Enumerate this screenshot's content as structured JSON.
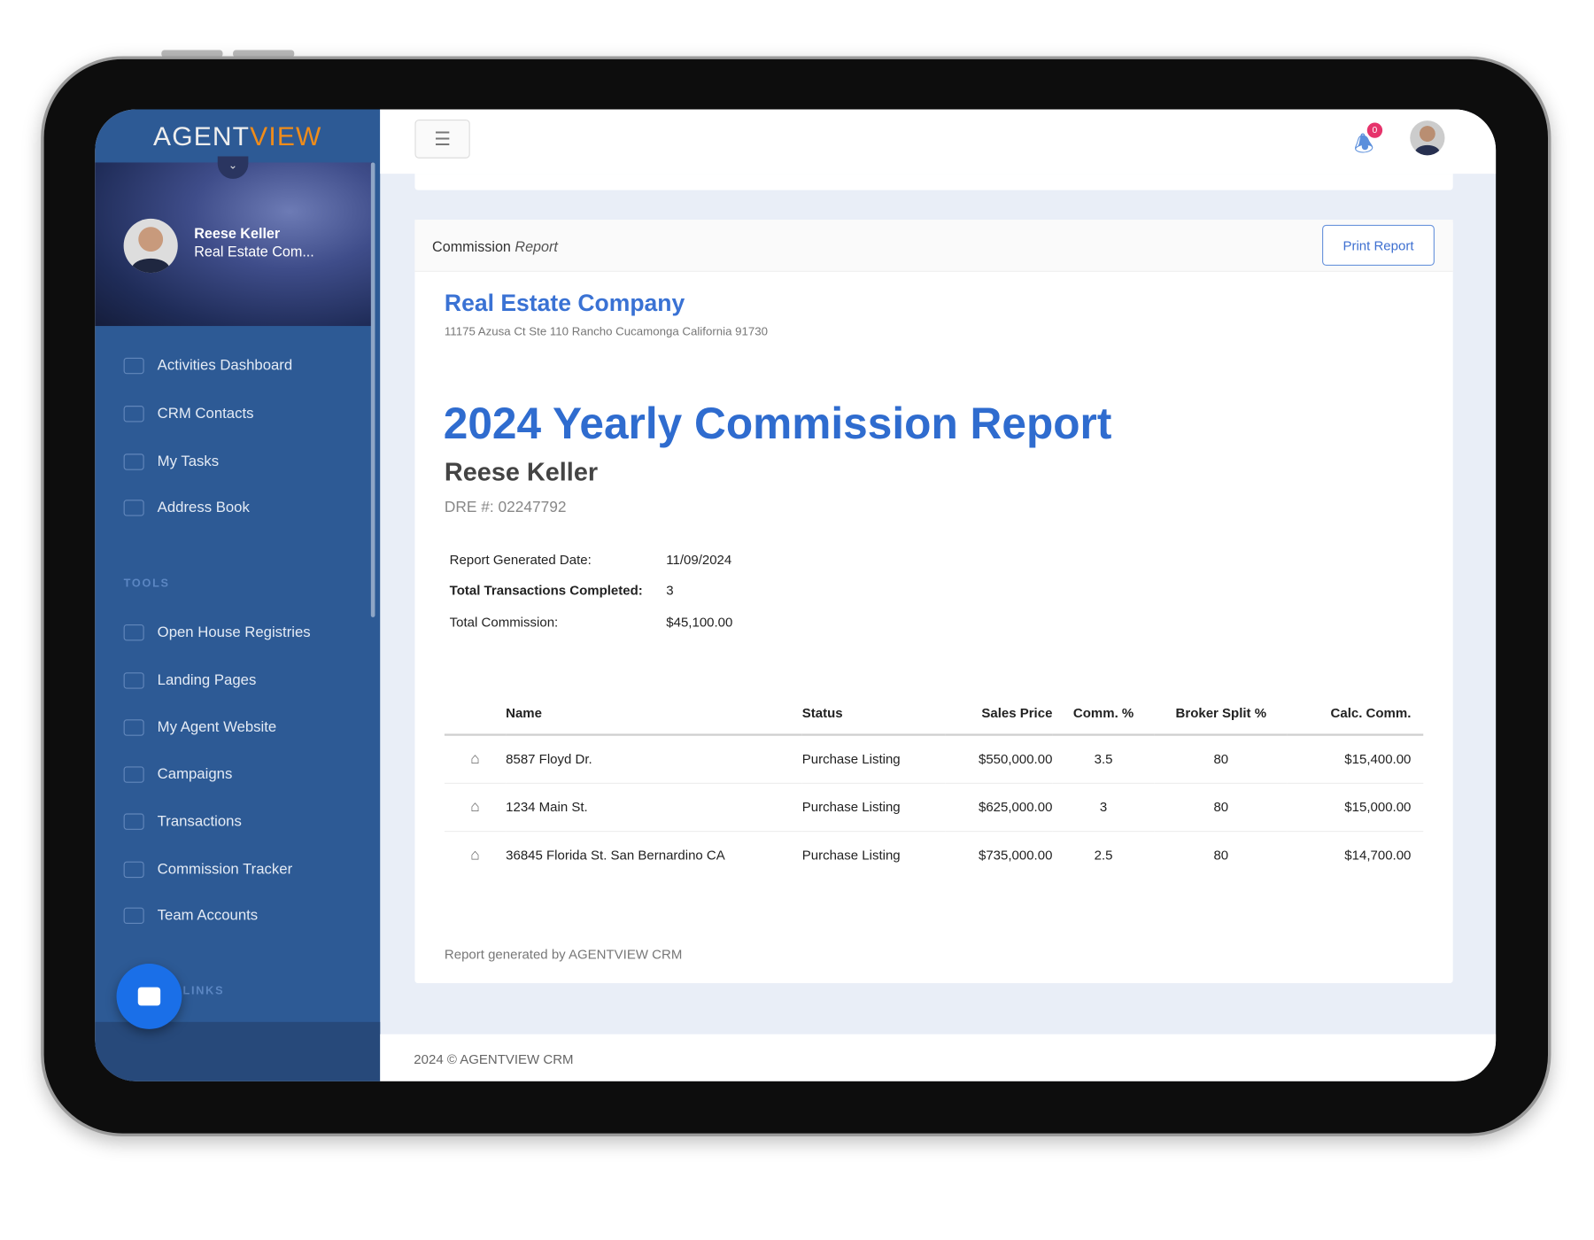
{
  "brand": {
    "logo_part1": "AGENT",
    "logo_part2": "VIEW",
    "accent": "#f08c1a",
    "primary": "#2d5a95"
  },
  "profile": {
    "name": "Reese Keller",
    "role": "Real Estate Com..."
  },
  "sidebar": {
    "items": [
      {
        "label": "Activities Dashboard",
        "icon": "home-icon"
      },
      {
        "label": "CRM Contacts",
        "icon": "users-icon"
      },
      {
        "label": "My Tasks",
        "icon": "tasks-icon"
      },
      {
        "label": "Address Book",
        "icon": "address-book-icon"
      }
    ],
    "tools_label": "TOOLS",
    "tools": [
      {
        "label": "Open House Registries",
        "icon": "open-house-icon"
      },
      {
        "label": "Landing Pages",
        "icon": "landing-page-icon"
      },
      {
        "label": "My Agent Website",
        "icon": "monitor-icon"
      },
      {
        "label": "Campaigns",
        "icon": "campaign-icon"
      },
      {
        "label": "Transactions",
        "icon": "handshake-icon"
      },
      {
        "label": "Commission Tracker",
        "icon": "chart-icon"
      },
      {
        "label": "Team Accounts",
        "icon": "team-icon"
      }
    ],
    "links_label": "LINKS"
  },
  "topbar": {
    "notification_count": "0"
  },
  "report": {
    "header_bold": "Commission",
    "header_italic": "Report",
    "print_label": "Print Report",
    "company": "Real Estate Company",
    "address": "11175 Azusa Ct Ste 110 Rancho Cucamonga California 91730",
    "title": "2024 Yearly Commission Report",
    "agent": "Reese Keller",
    "dre": "DRE #: 02247792",
    "meta": [
      {
        "label": "Report Generated Date:",
        "value": "11/09/2024"
      },
      {
        "label": "Total Transactions Completed:",
        "value": "3"
      },
      {
        "label": "Total Commission:",
        "value": "$45,100.00"
      }
    ],
    "columns": [
      "Name",
      "Status",
      "Sales Price",
      "Comm. %",
      "Broker Split %",
      "Calc. Comm."
    ],
    "rows": [
      {
        "name": "8587 Floyd Dr.",
        "status": "Purchase Listing",
        "price": "$550,000.00",
        "comm": "3.5",
        "split": "80",
        "calc": "$15,400.00"
      },
      {
        "name": "1234 Main St.",
        "status": "Purchase Listing",
        "price": "$625,000.00",
        "comm": "3",
        "split": "80",
        "calc": "$15,000.00"
      },
      {
        "name": "36845 Florida St. San Bernardino CA",
        "status": "Purchase Listing",
        "price": "$735,000.00",
        "comm": "2.5",
        "split": "80",
        "calc": "$14,700.00"
      }
    ],
    "footer_note": "Report generated by AGENTVIEW CRM"
  },
  "footer": "2024 © AGENTVIEW CRM"
}
